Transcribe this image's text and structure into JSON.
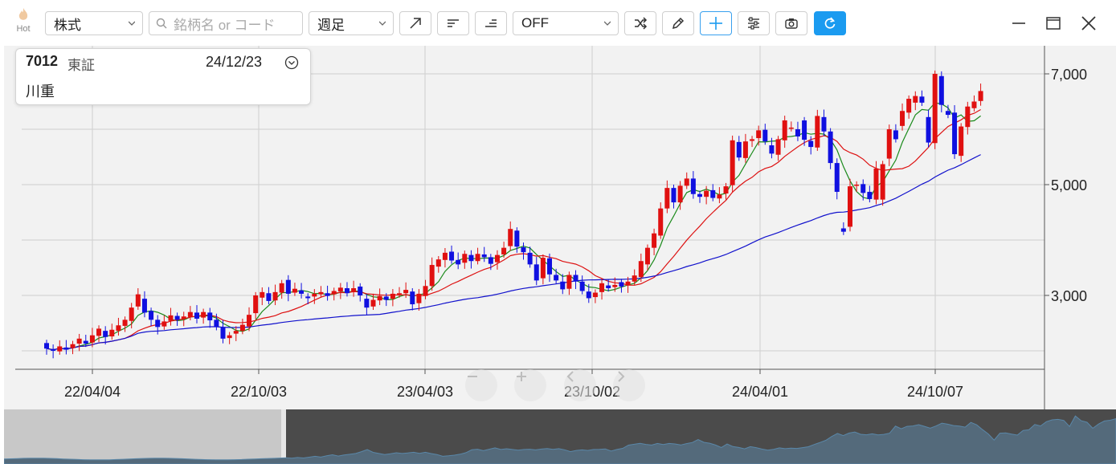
{
  "toolbar": {
    "hot_label": "Hot",
    "asset_type": "株式",
    "search_placeholder": "銘柄名 or コード",
    "period": "週足",
    "indicator": "OFF",
    "icons": [
      "trend-line-icon",
      "horizontal-line-icon",
      "horizontal-line-lower-icon",
      "shuffle-icon",
      "pencil-icon",
      "crosshair-icon",
      "settings-sliders-icon",
      "camera-icon",
      "refresh-icon"
    ],
    "active_tool": "crosshair-icon",
    "accent_color": "#1b9bf0"
  },
  "window_controls": [
    "minimize-icon",
    "maximize-icon",
    "close-icon"
  ],
  "stock_info": {
    "code": "7012",
    "market": "東証",
    "date": "24/12/23",
    "name": "川重"
  },
  "nav_controls": [
    "zoom-out-icon",
    "zoom-in-icon",
    "scroll-left-icon",
    "scroll-right-icon"
  ],
  "colors": {
    "up": "#e01010",
    "down": "#1010e0",
    "ma_short": "#1a8a1a",
    "ma_mid": "#dd1111",
    "ma_long": "#1111cc"
  },
  "chart_data": {
    "type": "candlestick",
    "timeframe": "weekly",
    "y_axis": {
      "ticks": [
        3000,
        5000,
        7000
      ],
      "tick_labels": [
        "3,000",
        "5,000",
        "7,000"
      ],
      "range": [
        1500,
        7600
      ],
      "position": "right"
    },
    "x_axis": {
      "tick_labels": [
        "22/04/04",
        "22/10/03",
        "23/04/03",
        "23/10/02",
        "24/04/01",
        "24/10/07"
      ]
    },
    "grid": true,
    "series": [
      {
        "name": "",
        "type": "candles",
        "points": [
          [
            2140,
            2040
          ],
          [
            2030,
            2000
          ],
          [
            1990,
            2080
          ],
          [
            2060,
            2020
          ],
          [
            2050,
            2120
          ],
          [
            2130,
            2220
          ],
          [
            2180,
            2130
          ],
          [
            2150,
            2280
          ],
          [
            2270,
            2400
          ],
          [
            2360,
            2250
          ],
          [
            2260,
            2380
          ],
          [
            2360,
            2460
          ],
          [
            2450,
            2560
          ],
          [
            2540,
            2780
          ],
          [
            2800,
            3020
          ],
          [
            2940,
            2690
          ],
          [
            2720,
            2560
          ],
          [
            2560,
            2430
          ],
          [
            2440,
            2530
          ],
          [
            2540,
            2640
          ],
          [
            2630,
            2560
          ],
          [
            2580,
            2620
          ],
          [
            2610,
            2700
          ],
          [
            2690,
            2580
          ],
          [
            2600,
            2700
          ],
          [
            2690,
            2550
          ],
          [
            2560,
            2430
          ],
          [
            2420,
            2220
          ],
          [
            2230,
            2280
          ],
          [
            2310,
            2360
          ],
          [
            2360,
            2470
          ],
          [
            2440,
            2650
          ],
          [
            2680,
            3000
          ],
          [
            2960,
            3060
          ],
          [
            3040,
            2900
          ],
          [
            2910,
            3060
          ],
          [
            3050,
            3220
          ],
          [
            3280,
            3030
          ],
          [
            3050,
            3120
          ],
          [
            3090,
            3030
          ],
          [
            2980,
            2950
          ],
          [
            2980,
            3030
          ],
          [
            3020,
            3060
          ],
          [
            3040,
            2990
          ],
          [
            3020,
            3080
          ],
          [
            3070,
            3140
          ],
          [
            3130,
            3040
          ],
          [
            3060,
            3130
          ],
          [
            3160,
            3000
          ],
          [
            2940,
            2780
          ],
          [
            2800,
            2920
          ],
          [
            2910,
            2990
          ],
          [
            2980,
            2920
          ],
          [
            2940,
            3030
          ],
          [
            3020,
            3040
          ],
          [
            3040,
            3100
          ],
          [
            3070,
            2840
          ],
          [
            2860,
            3030
          ],
          [
            2990,
            3170
          ],
          [
            3170,
            3550
          ],
          [
            3520,
            3650
          ],
          [
            3640,
            3770
          ],
          [
            3790,
            3630
          ],
          [
            3640,
            3560
          ],
          [
            3590,
            3750
          ],
          [
            3730,
            3620
          ],
          [
            3620,
            3750
          ],
          [
            3740,
            3690
          ],
          [
            3690,
            3570
          ],
          [
            3600,
            3730
          ],
          [
            3740,
            3860
          ],
          [
            3890,
            4200
          ],
          [
            4170,
            3880
          ],
          [
            3870,
            3780
          ],
          [
            3770,
            3560
          ],
          [
            3560,
            3270
          ],
          [
            3310,
            3680
          ],
          [
            3670,
            3380
          ],
          [
            3370,
            3270
          ],
          [
            3250,
            3110
          ],
          [
            3120,
            3370
          ],
          [
            3370,
            3250
          ],
          [
            3250,
            3080
          ],
          [
            3070,
            2950
          ],
          [
            2970,
            3050
          ],
          [
            3060,
            3220
          ],
          [
            3180,
            3130
          ],
          [
            3150,
            3190
          ],
          [
            3240,
            3160
          ],
          [
            3180,
            3250
          ],
          [
            3250,
            3360
          ],
          [
            3330,
            3620
          ],
          [
            3560,
            3860
          ],
          [
            3860,
            4120
          ],
          [
            4080,
            4570
          ],
          [
            4570,
            4940
          ],
          [
            4940,
            4680
          ],
          [
            4680,
            4980
          ],
          [
            4980,
            5110
          ],
          [
            5110,
            4830
          ],
          [
            4830,
            4780
          ],
          [
            4780,
            4890
          ],
          [
            4900,
            4760
          ],
          [
            4750,
            4820
          ],
          [
            4840,
            4970
          ],
          [
            4990,
            5800
          ],
          [
            5770,
            5490
          ],
          [
            5480,
            5780
          ],
          [
            5790,
            5820
          ],
          [
            5840,
            5980
          ],
          [
            5990,
            5780
          ],
          [
            5710,
            5560
          ],
          [
            5540,
            5820
          ],
          [
            5800,
            6160
          ],
          [
            6020,
            6030
          ],
          [
            6000,
            5870
          ],
          [
            6160,
            5810
          ],
          [
            5790,
            5680
          ],
          [
            5670,
            6240
          ],
          [
            6220,
            5960
          ],
          [
            5960,
            5390
          ],
          [
            5390,
            4870
          ],
          [
            4210,
            4150
          ],
          [
            4240,
            4970
          ],
          [
            4980,
            5000
          ],
          [
            5010,
            4850
          ],
          [
            4870,
            4740
          ],
          [
            4730,
            5290
          ],
          [
            4730,
            5370
          ],
          [
            5470,
            6000
          ],
          [
            5980,
            5820
          ],
          [
            6060,
            6330
          ],
          [
            6300,
            6550
          ],
          [
            6480,
            6600
          ],
          [
            6590,
            6480
          ],
          [
            6220,
            5760
          ],
          [
            5750,
            7000
          ],
          [
            6960,
            6440
          ],
          [
            6330,
            6260
          ],
          [
            6300,
            5550
          ],
          [
            5520,
            6050
          ],
          [
            6040,
            6410
          ],
          [
            6380,
            6500
          ],
          [
            6510,
            6690
          ]
        ]
      },
      {
        "name": "",
        "type": "line",
        "color": "#1a8a1a"
      },
      {
        "name": "",
        "type": "line",
        "color": "#dd1111"
      },
      {
        "name": "",
        "type": "line",
        "color": "#1111cc"
      }
    ]
  }
}
